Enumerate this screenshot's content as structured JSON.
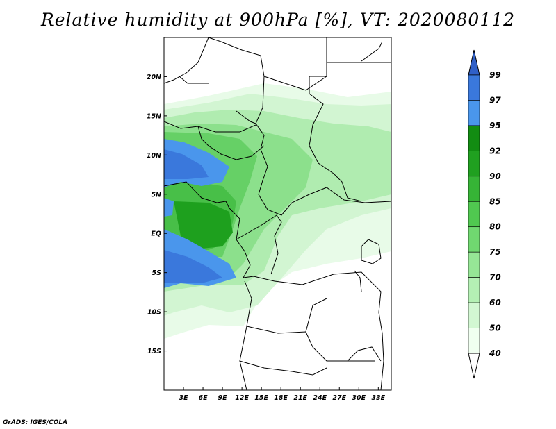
{
  "title": "Relative humidity at 900hPa [%], VT: 2020080112",
  "credit": "GrADS: IGES/COLA",
  "map": {
    "lon_range": [
      0,
      35
    ],
    "lat_range": [
      -20,
      25
    ],
    "lon_ticks": [
      {
        "lon": 3,
        "label": "3E"
      },
      {
        "lon": 6,
        "label": "6E"
      },
      {
        "lon": 9,
        "label": "9E"
      },
      {
        "lon": 12,
        "label": "12E"
      },
      {
        "lon": 15,
        "label": "15E"
      },
      {
        "lon": 18,
        "label": "18E"
      },
      {
        "lon": 21,
        "label": "21E"
      },
      {
        "lon": 24,
        "label": "24E"
      },
      {
        "lon": 27,
        "label": "27E"
      },
      {
        "lon": 30,
        "label": "30E"
      },
      {
        "lon": 33,
        "label": "33E"
      }
    ],
    "lat_ticks": [
      {
        "lat": 20,
        "label": "20N"
      },
      {
        "lat": 15,
        "label": "15N"
      },
      {
        "lat": 10,
        "label": "10N"
      },
      {
        "lat": 5,
        "label": "5N"
      },
      {
        "lat": 0,
        "label": "EQ"
      },
      {
        "lat": -5,
        "label": "5S"
      },
      {
        "lat": -10,
        "label": "10S"
      },
      {
        "lat": -15,
        "label": "15S"
      }
    ]
  },
  "colorbar": {
    "levels": [
      "99",
      "97",
      "95",
      "92",
      "90",
      "85",
      "80",
      "75",
      "70",
      "60",
      "50",
      "40"
    ],
    "colors": [
      "#3060c8",
      "#3a78dc",
      "#4a96ec",
      "#128c12",
      "#20a020",
      "#36b436",
      "#50c850",
      "#70d870",
      "#96e696",
      "#b4f0b4",
      "#d2f7d2",
      "#f0fff0",
      "#ffffff"
    ]
  }
}
